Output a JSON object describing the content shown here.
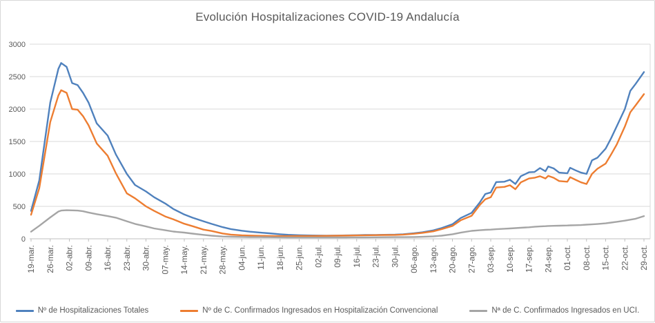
{
  "chart_data": {
    "type": "line",
    "title": "Evolución Hospitalizaciones COVID-19 Andalucía",
    "x_tick_labels": [
      "19-mar.",
      "26-mar.",
      "02-abr.",
      "09-abr.",
      "16-abr.",
      "23-abr.",
      "30-abr.",
      "07-may.",
      "14-may.",
      "21-may.",
      "28-may.",
      "04-jun.",
      "11-jun.",
      "18-jun.",
      "25-jun.",
      "02-jul.",
      "09-jul.",
      "16-jul.",
      "23-jul.",
      "30-jul.",
      "06-ago.",
      "13-ago.",
      "20-ago.",
      "27-ago.",
      "03-sep.",
      "10-sep.",
      "17-sep.",
      "24-sep.",
      "01-oct.",
      "08-oct.",
      "15-oct.",
      "22-oct.",
      "29-oct."
    ],
    "x_tick_interval_days": 7,
    "day_offsets": [
      0,
      3,
      7,
      10,
      11,
      13,
      15,
      17,
      19,
      21,
      24,
      28,
      31,
      35,
      38,
      42,
      45,
      49,
      52,
      56,
      59,
      63,
      66,
      70,
      73,
      77,
      80,
      84,
      87,
      91,
      94,
      98,
      101,
      105,
      108,
      112,
      115,
      119,
      122,
      126,
      129,
      133,
      136,
      140,
      143,
      147,
      150,
      154,
      157,
      161,
      164,
      166,
      168,
      170,
      173,
      175,
      177,
      179,
      182,
      184,
      186,
      188,
      189,
      191,
      193,
      196,
      197,
      199,
      201,
      203,
      205,
      207,
      210,
      212,
      214,
      217,
      219,
      221,
      224
    ],
    "series": [
      {
        "name": "Nº de Hospitalizaciones Totales",
        "color": "#4F81BD",
        "values": [
          430,
          900,
          2100,
          2620,
          2710,
          2650,
          2400,
          2370,
          2250,
          2100,
          1780,
          1590,
          1300,
          1000,
          830,
          730,
          640,
          545,
          460,
          375,
          325,
          270,
          230,
          180,
          150,
          125,
          110,
          95,
          85,
          70,
          62,
          55,
          52,
          50,
          48,
          50,
          52,
          55,
          58,
          60,
          62,
          65,
          70,
          85,
          100,
          130,
          165,
          225,
          320,
          400,
          560,
          690,
          715,
          875,
          880,
          910,
          845,
          965,
          1025,
          1030,
          1090,
          1040,
          1115,
          1085,
          1020,
          1010,
          1095,
          1055,
          1020,
          1000,
          1210,
          1250,
          1390,
          1550,
          1730,
          2000,
          2280,
          2390,
          2570
        ]
      },
      {
        "name": "Nº de C. Confirmados Ingresados en Hospitalización Convencional",
        "color": "#ED7D31",
        "values": [
          370,
          780,
          1800,
          2210,
          2290,
          2250,
          2000,
          1990,
          1890,
          1750,
          1470,
          1280,
          1010,
          700,
          625,
          500,
          430,
          345,
          300,
          232,
          195,
          142,
          120,
          82,
          65,
          54,
          50,
          46,
          44,
          42,
          42,
          43,
          44,
          45,
          46,
          48,
          50,
          52,
          54,
          56,
          58,
          60,
          65,
          78,
          92,
          115,
          148,
          198,
          285,
          355,
          520,
          610,
          640,
          790,
          800,
          825,
          765,
          870,
          930,
          940,
          965,
          930,
          970,
          940,
          890,
          880,
          950,
          910,
          870,
          845,
          1000,
          1080,
          1160,
          1300,
          1450,
          1730,
          1950,
          2060,
          2230
        ]
      },
      {
        "name": "Nª de C. Confirmados Ingresados en UCI.",
        "color": "#A5A5A5",
        "values": [
          110,
          200,
          330,
          420,
          435,
          440,
          438,
          435,
          425,
          405,
          380,
          350,
          325,
          270,
          230,
          190,
          160,
          132,
          112,
          96,
          80,
          61,
          48,
          35,
          32,
          29,
          27,
          25,
          24,
          22,
          21,
          20,
          20,
          20,
          20,
          21,
          21,
          22,
          22,
          23,
          24,
          25,
          26,
          28,
          31,
          38,
          48,
          70,
          95,
          122,
          132,
          138,
          142,
          148,
          155,
          160,
          165,
          170,
          178,
          185,
          190,
          195,
          198,
          200,
          202,
          205,
          207,
          210,
          212,
          218,
          222,
          228,
          238,
          250,
          262,
          280,
          295,
          310,
          350
        ]
      }
    ],
    "y_ticks": [
      0,
      500,
      1000,
      1500,
      2000,
      2500,
      3000
    ],
    "ylim": [
      0,
      3000
    ],
    "grid": true,
    "legend_position": "bottom"
  },
  "style": {
    "gridline_color": "#D9D9D9",
    "axis_line_color": "#BFBFBF",
    "tick_label_color": "#595959",
    "title_color": "#595959"
  }
}
